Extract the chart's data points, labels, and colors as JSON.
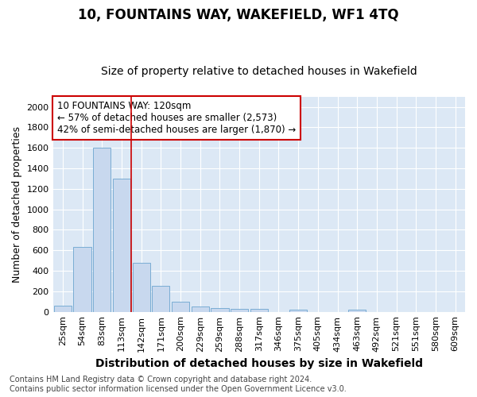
{
  "title": "10, FOUNTAINS WAY, WAKEFIELD, WF1 4TQ",
  "subtitle": "Size of property relative to detached houses in Wakefield",
  "xlabel": "Distribution of detached houses by size in Wakefield",
  "ylabel": "Number of detached properties",
  "categories": [
    "25sqm",
    "54sqm",
    "83sqm",
    "113sqm",
    "142sqm",
    "171sqm",
    "200sqm",
    "229sqm",
    "259sqm",
    "288sqm",
    "317sqm",
    "346sqm",
    "375sqm",
    "405sqm",
    "434sqm",
    "463sqm",
    "492sqm",
    "521sqm",
    "551sqm",
    "580sqm",
    "609sqm"
  ],
  "values": [
    62,
    630,
    1600,
    1300,
    475,
    250,
    100,
    55,
    40,
    30,
    25,
    0,
    20,
    0,
    0,
    20,
    0,
    0,
    0,
    0,
    0
  ],
  "bar_color": "#c8d8ee",
  "bar_edge_color": "#7aadd4",
  "ylim": [
    0,
    2100
  ],
  "yticks": [
    0,
    200,
    400,
    600,
    800,
    1000,
    1200,
    1400,
    1600,
    1800,
    2000
  ],
  "vline_x": 3.5,
  "vline_color": "#cc0000",
  "annotation_text": "10 FOUNTAINS WAY: 120sqm\n← 57% of detached houses are smaller (2,573)\n42% of semi-detached houses are larger (1,870) →",
  "annotation_box_color": "#cc0000",
  "footer_line1": "Contains HM Land Registry data © Crown copyright and database right 2024.",
  "footer_line2": "Contains public sector information licensed under the Open Government Licence v3.0.",
  "bg_color": "#ffffff",
  "plot_bg_color": "#dce8f5",
  "grid_color": "#ffffff",
  "title_fontsize": 12,
  "subtitle_fontsize": 10,
  "xlabel_fontsize": 10,
  "ylabel_fontsize": 9,
  "tick_fontsize": 8,
  "footer_fontsize": 7
}
